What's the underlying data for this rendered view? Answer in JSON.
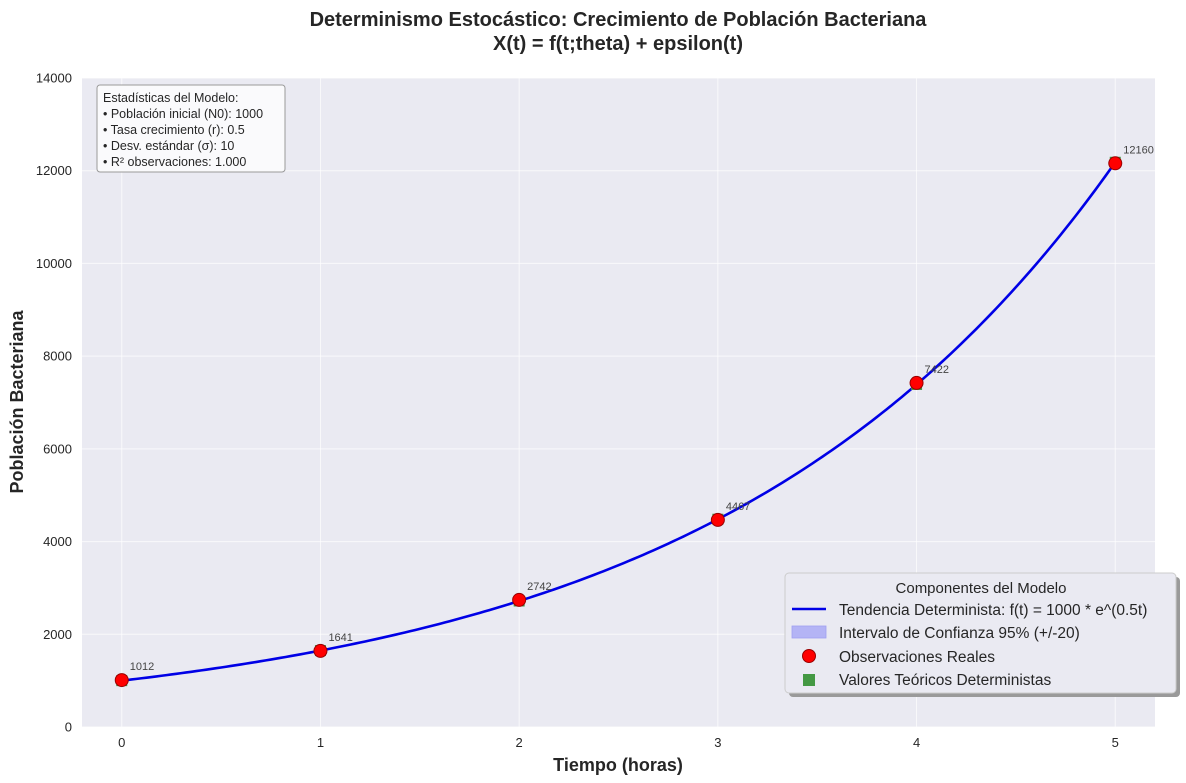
{
  "chart_data": {
    "type": "line",
    "title": "Determinismo Estocástico: Crecimiento de Población Bacteriana",
    "subtitle": "X(t) = f(t;theta) + epsilon(t)",
    "xlabel": "Tiempo (horas)",
    "ylabel": "Población Bacteriana",
    "xlim": [
      -0.2,
      5.2
    ],
    "ylim": [
      0,
      14000
    ],
    "xticks": [
      0,
      1,
      2,
      3,
      4,
      5
    ],
    "yticks": [
      0,
      2000,
      4000,
      6000,
      8000,
      10000,
      12000,
      14000
    ],
    "grid": true,
    "legend_placement": "lower-right",
    "legend_title": "Componentes del Modelo",
    "model": {
      "N0": 1000,
      "r": 0.5,
      "ci_halfwidth": 20
    },
    "series": [
      {
        "name": "Tendencia Determinista: f(t) = 1000 * e^(0.5t)",
        "kind": "curve",
        "color": "#0000e6"
      },
      {
        "name": "Intervalo de Confianza 95% (+/-20)",
        "kind": "band",
        "color": "#b4b4f5"
      },
      {
        "name": "Observaciones Reales",
        "kind": "points",
        "color": "#ff0000",
        "x": [
          0,
          1,
          2,
          3,
          4,
          5
        ],
        "values": [
          1012,
          1641,
          2742,
          4467,
          7422,
          12160
        ]
      },
      {
        "name": "Valores Teóricos Deterministas",
        "kind": "squares",
        "color": "#449944",
        "x": [
          0,
          1,
          2,
          3,
          4,
          5
        ],
        "values": [
          1000,
          1649,
          2718,
          4482,
          7389,
          12182
        ]
      }
    ],
    "data_labels": [
      "1012",
      "1641",
      "2742",
      "4467",
      "7422",
      "12160"
    ],
    "stats_box": {
      "title": "Estadísticas del Modelo:",
      "lines": [
        "• Población inicial (N0): 1000",
        "• Tasa crecimiento (r): 0.5",
        "• Desv. estándar (σ): 10",
        "• R² observaciones: 1.000"
      ]
    }
  },
  "colors": {
    "plot_background": "#eaeaf2",
    "grid": "#ffffff",
    "text": "#262626"
  }
}
